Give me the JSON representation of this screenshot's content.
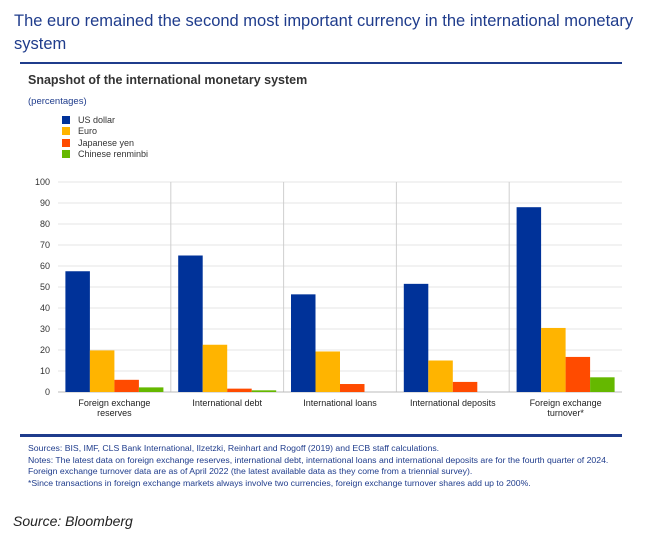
{
  "header": {
    "title": "The euro remained the second most important currency in the international monetary system"
  },
  "chart_data": {
    "type": "bar",
    "title": "Snapshot of the international monetary system",
    "ylabel": "(percentages)",
    "ylim": [
      0,
      100
    ],
    "yticks": [
      0,
      10,
      20,
      30,
      40,
      50,
      60,
      70,
      80,
      90,
      100
    ],
    "categories": [
      "Foreign exchange reserves",
      "International debt",
      "International loans",
      "International deposits",
      "Foreign exchange turnover*"
    ],
    "category_lines": [
      [
        "Foreign exchange",
        "reserves"
      ],
      [
        "International debt"
      ],
      [
        "International loans"
      ],
      [
        "International deposits"
      ],
      [
        "Foreign exchange",
        "turnover*"
      ]
    ],
    "series": [
      {
        "name": "US dollar",
        "color": "#003299",
        "values": [
          57.5,
          65,
          46.5,
          51.5,
          88
        ]
      },
      {
        "name": "Euro",
        "color": "#ffb400",
        "values": [
          19.8,
          22.5,
          19.3,
          15,
          30.5
        ]
      },
      {
        "name": "Japanese yen",
        "color": "#ff4b00",
        "values": [
          5.8,
          1.6,
          3.8,
          4.8,
          16.7
        ]
      },
      {
        "name": "Chinese renminbi",
        "color": "#65b800",
        "values": [
          2.2,
          0.8,
          0,
          0,
          7
        ]
      }
    ],
    "grid": true,
    "legend": "top-left"
  },
  "notes": {
    "sources": "Sources: BIS, IMF, CLS Bank International, Ilzetzki, Reinhart and Rogoff (2019) and ECB staff calculations.",
    "notes": "Notes: The latest data on foreign exchange reserves, international debt, international loans and international deposits are for the fourth quarter of 2024. Foreign exchange turnover data are as of April 2022 (the latest available data as they come from a triennial survey).",
    "footnote": "*Since transactions in foreign exchange markets always involve two currencies, foreign exchange turnover shares add up to 200%."
  },
  "source": "Source: Bloomberg"
}
